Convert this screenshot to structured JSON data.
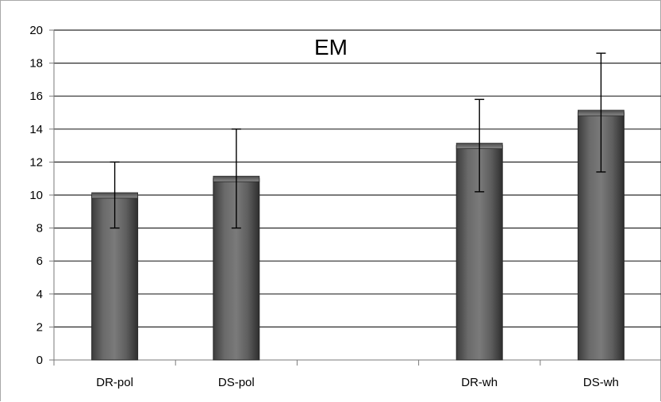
{
  "chart_data": {
    "type": "bar",
    "title": "EM",
    "categories": [
      "DR-pol",
      "DS-pol",
      "",
      "DR-wh",
      "DS-wh"
    ],
    "values": [
      10,
      11,
      null,
      13,
      15
    ],
    "error_low": [
      8,
      8,
      null,
      10.2,
      11.4
    ],
    "error_high": [
      12,
      14,
      null,
      15.8,
      18.6
    ],
    "ylim": [
      0,
      20
    ],
    "yticks": [
      "0",
      "2",
      "4",
      "6",
      "8",
      "10",
      "12",
      "14",
      "16",
      "18",
      "20"
    ],
    "ytick_values": [
      0,
      2,
      4,
      6,
      8,
      10,
      12,
      14,
      16,
      18,
      20
    ],
    "grid": true,
    "legend": "none",
    "xlabel": "",
    "ylabel": "",
    "bar_color": "#5a5a5a",
    "grid_color": "#2a2a2a"
  }
}
